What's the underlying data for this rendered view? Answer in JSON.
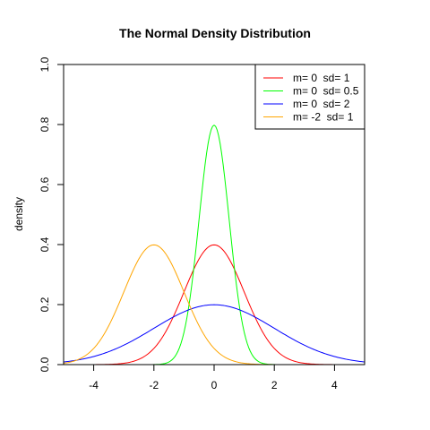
{
  "chart_data": {
    "type": "line",
    "title": "The Normal Density Distribution",
    "xlabel": "",
    "ylabel": "density",
    "xlim": [
      -5,
      5
    ],
    "ylim": [
      0,
      1
    ],
    "x_ticks": [
      -4,
      -2,
      0,
      2,
      4
    ],
    "y_ticks": [
      0.0,
      0.2,
      0.4,
      0.6,
      0.8,
      1.0
    ],
    "y_tick_labels": [
      "0.0",
      "0.2",
      "0.4",
      "0.6",
      "0.8",
      "1.0"
    ],
    "grid": false,
    "legend_position": "top-right",
    "series": [
      {
        "name": "m= 0  sd= 1",
        "mean": 0,
        "sd": 1,
        "color": "#FF0000",
        "x": [
          -5,
          -4,
          -3,
          -2,
          -1.5,
          -1,
          -0.5,
          0,
          0.5,
          1,
          1.5,
          2,
          3,
          4,
          5
        ],
        "values": [
          0.0,
          0.0001,
          0.0044,
          0.054,
          0.1295,
          0.242,
          0.3521,
          0.3989,
          0.3521,
          0.242,
          0.1295,
          0.054,
          0.0044,
          0.0001,
          0.0
        ]
      },
      {
        "name": "m= 0  sd= 0.5",
        "mean": 0,
        "sd": 0.5,
        "color": "#00FF00",
        "x": [
          -2,
          -1.5,
          -1,
          -0.75,
          -0.5,
          -0.25,
          0,
          0.25,
          0.5,
          0.75,
          1,
          1.5,
          2
        ],
        "values": [
          0.0003,
          0.0089,
          0.108,
          0.259,
          0.4839,
          0.7041,
          0.7979,
          0.7041,
          0.4839,
          0.259,
          0.108,
          0.0089,
          0.0003
        ]
      },
      {
        "name": "m= 0  sd= 2",
        "mean": 0,
        "sd": 2,
        "color": "#0000FF",
        "x": [
          -5,
          -4,
          -3,
          -2,
          -1,
          0,
          1,
          2,
          3,
          4,
          5
        ],
        "values": [
          0.0088,
          0.027,
          0.0648,
          0.121,
          0.176,
          0.1995,
          0.176,
          0.121,
          0.0648,
          0.027,
          0.0088
        ]
      },
      {
        "name": "m= -2  sd= 1",
        "mean": -2,
        "sd": 1,
        "color": "#FFA500",
        "x": [
          -5,
          -4,
          -3.5,
          -3,
          -2.5,
          -2,
          -1.5,
          -1,
          -0.5,
          0,
          1,
          2
        ],
        "values": [
          0.0044,
          0.054,
          0.1295,
          0.242,
          0.3521,
          0.3989,
          0.3521,
          0.242,
          0.1295,
          0.054,
          0.0044,
          0.0001
        ]
      }
    ]
  }
}
